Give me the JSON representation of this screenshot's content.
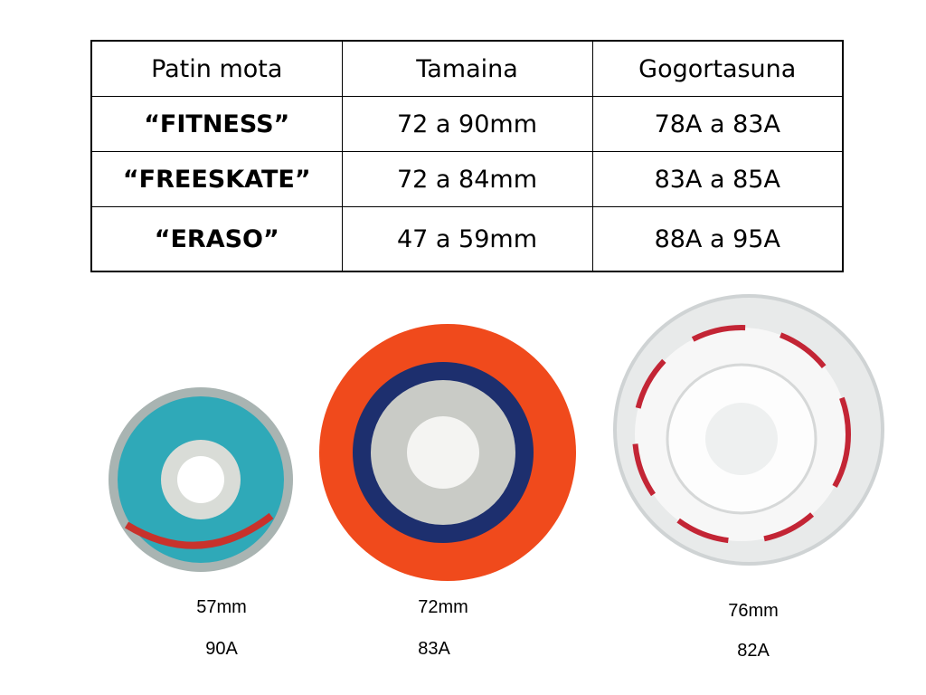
{
  "table": {
    "header": [
      "Patin mota",
      "Tamaina",
      "Gogortasuna"
    ],
    "rows": [
      [
        "“FITNESS”",
        "72 a 90mm",
        "78A a 83A"
      ],
      [
        "“FREESKATE”",
        "72 a 84mm",
        "83A a 85A"
      ],
      [
        "“ERASO”",
        "47 a 59mm",
        "88A a 95A"
      ]
    ]
  },
  "wheels": [
    {
      "size": "57mm",
      "hardness": "90A"
    },
    {
      "size": "72mm",
      "hardness": "83A"
    },
    {
      "size": "76mm",
      "hardness": "82A"
    }
  ]
}
